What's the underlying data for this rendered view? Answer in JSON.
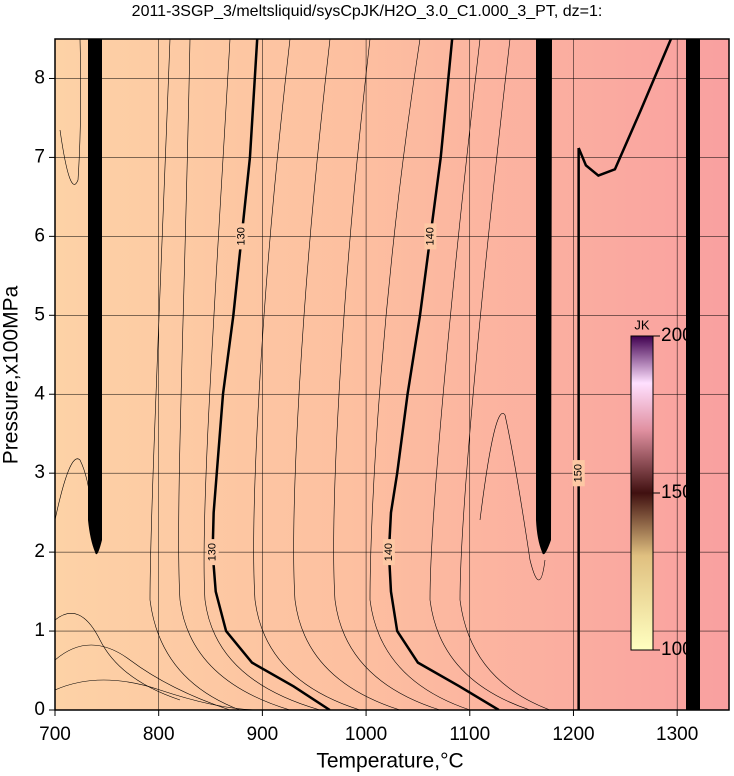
{
  "chart_data": {
    "type": "contour",
    "title": "2011-3SGP_3/meltsliquid/sysCpJK/H2O_3.0_C1.000_3_PT, dz=1:",
    "x_label": "Temperature,°C",
    "y_label": "Pressure,x100MPa",
    "xlim": [
      700,
      1350
    ],
    "ylim": [
      0,
      8.5
    ],
    "xticks": [
      700,
      800,
      900,
      1000,
      1100,
      1200,
      1300
    ],
    "yticks": [
      0,
      1,
      2,
      3,
      4,
      5,
      6,
      7,
      8
    ],
    "grid": true,
    "contours": [
      {
        "level": 130,
        "label": "130",
        "x": [
          965,
          930,
          890,
          865,
          855,
          852,
          853,
          856,
          862,
          872,
          880,
          888,
          895
        ],
        "y": [
          0,
          0.3,
          0.6,
          1,
          1.5,
          2,
          2.5,
          3,
          4,
          5,
          6,
          7,
          8.5
        ]
      },
      {
        "level": 140,
        "label": "140",
        "x": [
          1128,
          1090,
          1050,
          1030,
          1024,
          1022,
          1024,
          1030,
          1040,
          1052,
          1062,
          1072,
          1083
        ],
        "y": [
          0,
          0.3,
          0.6,
          1,
          1.5,
          2,
          2.5,
          3,
          4,
          5,
          6,
          7,
          8.5
        ]
      },
      {
        "level": 150,
        "label": "150",
        "x": [
          1205,
          1205,
          1205,
          1205
        ],
        "y": [
          0,
          3,
          6,
          7.12
        ]
      },
      {
        "level": 150,
        "label": "150",
        "x": [
          1205,
          1212,
          1224,
          1240,
          1265,
          1294
        ],
        "y": [
          7.12,
          6.9,
          6.77,
          6.85,
          7.6,
          8.5
        ]
      }
    ],
    "colorbar": {
      "label": "JK",
      "lim": [
        100,
        200
      ],
      "ticks": [
        100,
        150,
        200
      ]
    }
  }
}
